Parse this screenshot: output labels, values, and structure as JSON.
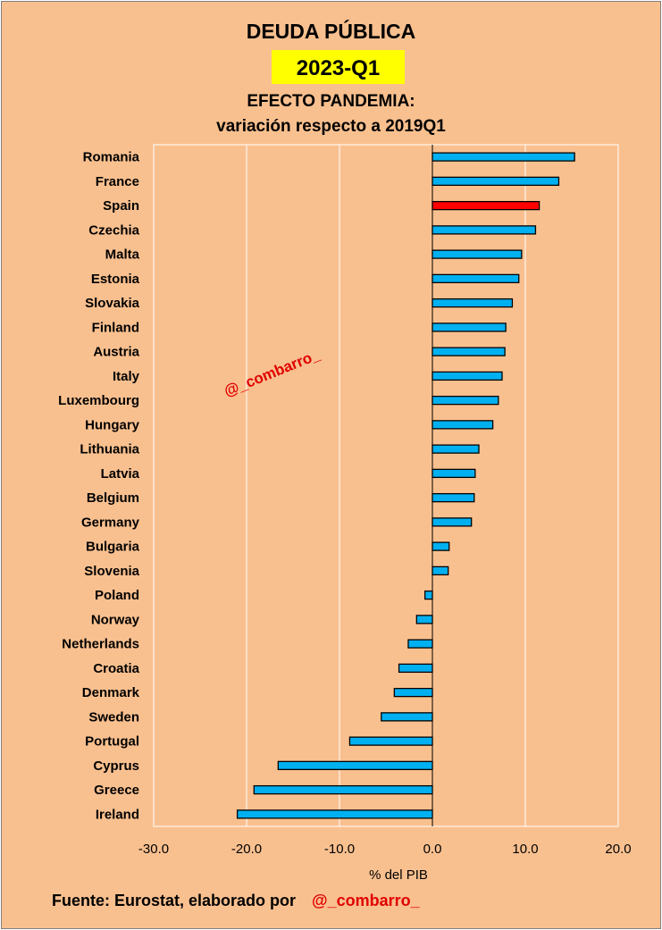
{
  "title": "DEUDA PÚBLICA",
  "period": "2023-Q1",
  "subtitle_line1": "EFECTO PANDEMIA:",
  "subtitle_line2": "variación respecto a 2019Q1",
  "watermark": "@_combarro_",
  "footer": {
    "source": "Fuente: Eurostat, elaborado por",
    "handle": "@_combarro_"
  },
  "colors": {
    "background": "#f9c08f",
    "bar": "#00b0f0",
    "highlight": "#ff0000",
    "grid": "#ffffff"
  },
  "chart_data": {
    "type": "bar",
    "orientation": "horizontal",
    "categories": [
      "Romania",
      "France",
      "Spain",
      "Czechia",
      "Malta",
      "Estonia",
      "Slovakia",
      "Finland",
      "Austria",
      "Italy",
      "Luxembourg",
      "Hungary",
      "Lithuania",
      "Latvia",
      "Belgium",
      "Germany",
      "Bulgaria",
      "Slovenia",
      "Poland",
      "Norway",
      "Netherlands",
      "Croatia",
      "Denmark",
      "Sweden",
      "Portugal",
      "Cyprus",
      "Greece",
      "Ireland"
    ],
    "values": [
      15.3,
      13.6,
      11.5,
      11.1,
      9.6,
      9.3,
      8.6,
      7.9,
      7.8,
      7.5,
      7.1,
      6.5,
      5.0,
      4.6,
      4.5,
      4.2,
      1.8,
      1.7,
      -0.8,
      -1.7,
      -2.6,
      -3.6,
      -4.1,
      -5.5,
      -8.9,
      -16.6,
      -19.2,
      -21.0
    ],
    "highlight": "Spain",
    "xlim": [
      -30,
      20
    ],
    "ticks": [
      "-30.0",
      "-20.0",
      "-10.0",
      "0.0",
      "10.0",
      "20.0"
    ],
    "xlabel": "% del PIB",
    "grid": true
  }
}
